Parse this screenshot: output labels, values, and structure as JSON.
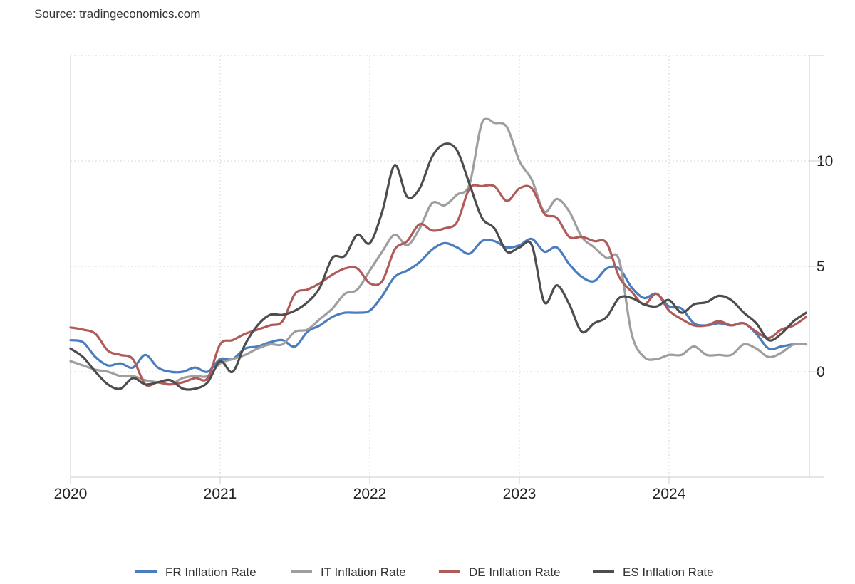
{
  "source": "Source: tradingeconomics.com",
  "chart_data": {
    "type": "line",
    "x_ticks": [
      "2020",
      "2021",
      "2022",
      "2023",
      "2024"
    ],
    "y_ticks": [
      "0",
      "5",
      "10"
    ],
    "y_tick_values": [
      0,
      5,
      10
    ],
    "ylim": [
      -5,
      15
    ],
    "xlim": [
      "2020-01",
      "2024-12"
    ],
    "grid": true,
    "legend_position": "bottom",
    "x": [
      "2020-01",
      "2020-02",
      "2020-03",
      "2020-04",
      "2020-05",
      "2020-06",
      "2020-07",
      "2020-08",
      "2020-09",
      "2020-10",
      "2020-11",
      "2020-12",
      "2021-01",
      "2021-02",
      "2021-03",
      "2021-04",
      "2021-05",
      "2021-06",
      "2021-07",
      "2021-08",
      "2021-09",
      "2021-10",
      "2021-11",
      "2021-12",
      "2022-01",
      "2022-02",
      "2022-03",
      "2022-04",
      "2022-05",
      "2022-06",
      "2022-07",
      "2022-08",
      "2022-09",
      "2022-10",
      "2022-11",
      "2022-12",
      "2023-01",
      "2023-02",
      "2023-03",
      "2023-04",
      "2023-05",
      "2023-06",
      "2023-07",
      "2023-08",
      "2023-09",
      "2023-10",
      "2023-11",
      "2023-12",
      "2024-01",
      "2024-02",
      "2024-03",
      "2024-04",
      "2024-05",
      "2024-06",
      "2024-07",
      "2024-08",
      "2024-09",
      "2024-10",
      "2024-11",
      "2024-12"
    ],
    "series": [
      {
        "name": "FR Inflation Rate",
        "color": "#4a7dbf",
        "values": [
          1.5,
          1.4,
          0.7,
          0.3,
          0.4,
          0.2,
          0.8,
          0.2,
          0.0,
          0.0,
          0.2,
          0.0,
          0.6,
          0.6,
          1.1,
          1.2,
          1.4,
          1.5,
          1.2,
          1.9,
          2.2,
          2.6,
          2.8,
          2.8,
          2.9,
          3.6,
          4.5,
          4.8,
          5.2,
          5.8,
          6.1,
          5.9,
          5.6,
          6.2,
          6.2,
          5.9,
          6.0,
          6.3,
          5.7,
          5.9,
          5.1,
          4.5,
          4.3,
          4.9,
          4.9,
          4.0,
          3.5,
          3.7,
          3.1,
          3.0,
          2.3,
          2.2,
          2.3,
          2.2,
          2.3,
          1.8,
          1.1,
          1.2,
          1.3,
          1.3
        ]
      },
      {
        "name": "IT Inflation Rate",
        "color": "#9e9e9e",
        "values": [
          0.5,
          0.3,
          0.1,
          0.0,
          -0.2,
          -0.2,
          -0.4,
          -0.5,
          -0.6,
          -0.3,
          -0.2,
          -0.2,
          0.4,
          0.6,
          0.8,
          1.1,
          1.3,
          1.3,
          1.9,
          2.0,
          2.5,
          3.0,
          3.7,
          3.9,
          4.8,
          5.7,
          6.5,
          6.0,
          6.8,
          8.0,
          7.9,
          8.4,
          8.9,
          11.8,
          11.8,
          11.6,
          10.0,
          9.1,
          7.6,
          8.2,
          7.6,
          6.4,
          5.9,
          5.4,
          5.3,
          1.8,
          0.7,
          0.6,
          0.8,
          0.8,
          1.2,
          0.8,
          0.8,
          0.8,
          1.3,
          1.1,
          0.7,
          0.9,
          1.3,
          1.3
        ]
      },
      {
        "name": "DE Inflation Rate",
        "color": "#b05a5a",
        "values": [
          2.1,
          2.0,
          1.8,
          1.0,
          0.8,
          0.6,
          -0.6,
          -0.5,
          -0.6,
          -0.5,
          -0.3,
          -0.3,
          1.3,
          1.5,
          1.8,
          2.0,
          2.2,
          2.4,
          3.7,
          3.9,
          4.2,
          4.6,
          4.9,
          4.9,
          4.2,
          4.3,
          5.8,
          6.2,
          7.0,
          6.7,
          6.8,
          7.1,
          8.7,
          8.8,
          8.8,
          8.1,
          8.7,
          8.7,
          7.5,
          7.3,
          6.4,
          6.4,
          6.2,
          6.1,
          4.5,
          3.8,
          3.2,
          3.7,
          2.9,
          2.5,
          2.2,
          2.2,
          2.4,
          2.2,
          2.3,
          1.9,
          1.6,
          2.0,
          2.2,
          2.6
        ]
      },
      {
        "name": "ES Inflation Rate",
        "color": "#4d4d4d",
        "values": [
          1.1,
          0.7,
          0.0,
          -0.6,
          -0.8,
          -0.3,
          -0.6,
          -0.5,
          -0.4,
          -0.8,
          -0.8,
          -0.5,
          0.5,
          0.0,
          1.3,
          2.2,
          2.7,
          2.7,
          2.9,
          3.3,
          4.0,
          5.4,
          5.5,
          6.5,
          6.1,
          7.6,
          9.8,
          8.3,
          8.7,
          10.2,
          10.8,
          10.5,
          8.9,
          7.3,
          6.8,
          5.7,
          5.9,
          6.0,
          3.3,
          4.1,
          3.2,
          1.9,
          2.3,
          2.6,
          3.5,
          3.5,
          3.2,
          3.1,
          3.4,
          2.8,
          3.2,
          3.3,
          3.6,
          3.4,
          2.8,
          2.3,
          1.5,
          1.8,
          2.4,
          2.8
        ]
      }
    ]
  }
}
